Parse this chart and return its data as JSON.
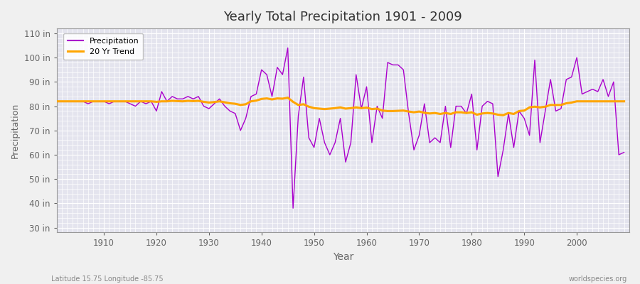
{
  "title": "Yearly Total Precipitation 1901 - 2009",
  "xlabel": "Year",
  "ylabel": "Precipitation",
  "subtitle_left": "Latitude 15.75 Longitude -85.75",
  "subtitle_right": "worldspecies.org",
  "ylim": [
    28,
    112
  ],
  "yticks": [
    30,
    40,
    50,
    60,
    70,
    80,
    90,
    100,
    110
  ],
  "xlim": [
    1901,
    2010
  ],
  "xticks": [
    1910,
    1920,
    1930,
    1940,
    1950,
    1960,
    1970,
    1980,
    1990,
    2000
  ],
  "precip_color": "#AA00CC",
  "trend_color": "#FFA500",
  "background_color": "#F0F0F0",
  "plot_bg_color": "#E4E4EE",
  "grid_color": "#FFFFFF",
  "years": [
    1901,
    1902,
    1903,
    1904,
    1905,
    1906,
    1907,
    1908,
    1909,
    1910,
    1911,
    1912,
    1913,
    1914,
    1915,
    1916,
    1917,
    1918,
    1919,
    1920,
    1921,
    1922,
    1923,
    1924,
    1925,
    1926,
    1927,
    1928,
    1929,
    1930,
    1931,
    1932,
    1933,
    1934,
    1935,
    1936,
    1937,
    1938,
    1939,
    1940,
    1941,
    1942,
    1943,
    1944,
    1945,
    1946,
    1947,
    1948,
    1949,
    1950,
    1951,
    1952,
    1953,
    1954,
    1955,
    1956,
    1957,
    1958,
    1959,
    1960,
    1961,
    1962,
    1963,
    1964,
    1965,
    1966,
    1967,
    1968,
    1969,
    1970,
    1971,
    1972,
    1973,
    1974,
    1975,
    1976,
    1977,
    1978,
    1979,
    1980,
    1981,
    1982,
    1983,
    1984,
    1985,
    1986,
    1987,
    1988,
    1989,
    1990,
    1991,
    1992,
    1993,
    1994,
    1995,
    1996,
    1997,
    1998,
    1999,
    2000,
    2001,
    2002,
    2003,
    2004,
    2005,
    2006,
    2007,
    2008,
    2009
  ],
  "precip": [
    82,
    82,
    82,
    82,
    82,
    82,
    81,
    82,
    82,
    82,
    81,
    82,
    82,
    82,
    81,
    80,
    82,
    81,
    82,
    78,
    86,
    82,
    84,
    83,
    83,
    84,
    83,
    84,
    80,
    79,
    81,
    83,
    80,
    78,
    77,
    70,
    75,
    84,
    85,
    95,
    93,
    84,
    96,
    93,
    104,
    38,
    76,
    92,
    67,
    63,
    75,
    65,
    60,
    65,
    75,
    57,
    65,
    93,
    79,
    88,
    65,
    80,
    75,
    98,
    97,
    97,
    95,
    77,
    62,
    68,
    81,
    65,
    67,
    65,
    80,
    63,
    80,
    80,
    77,
    85,
    62,
    80,
    82,
    81,
    51,
    62,
    77,
    63,
    78,
    75,
    68,
    99,
    65,
    78,
    91,
    78,
    79,
    91,
    92,
    100,
    85,
    86,
    87,
    86,
    91,
    84,
    90,
    60,
    61
  ],
  "trend": [
    82.0,
    82.0,
    82.0,
    82.0,
    82.0,
    82.0,
    82.0,
    82.0,
    82.0,
    82.0,
    82.0,
    82.0,
    82.0,
    82.0,
    82.0,
    82.0,
    82.0,
    82.0,
    82.0,
    81.8,
    82.0,
    82.0,
    82.2,
    82.1,
    82.0,
    82.2,
    82.1,
    82.2,
    81.8,
    81.5,
    81.7,
    82.0,
    81.6,
    81.2,
    81.0,
    80.5,
    80.8,
    82.0,
    82.3,
    83.0,
    83.2,
    82.8,
    83.2,
    83.1,
    83.5,
    81.8,
    80.5,
    80.8,
    79.8,
    79.2,
    79.0,
    78.8,
    79.0,
    79.2,
    79.5,
    79.0,
    79.2,
    79.5,
    79.2,
    79.4,
    78.8,
    79.0,
    78.2,
    78.0,
    78.0,
    78.1,
    78.2,
    77.8,
    77.5,
    77.8,
    77.3,
    77.0,
    77.2,
    76.8,
    77.2,
    76.8,
    77.5,
    77.5,
    77.2,
    77.5,
    76.5,
    77.0,
    77.2,
    77.0,
    76.5,
    76.3,
    77.2,
    76.8,
    78.0,
    78.2,
    79.5,
    79.8,
    79.5,
    79.8,
    80.5,
    80.5,
    80.5,
    81.2,
    81.5,
    82.0,
    82.0,
    82.0,
    82.0,
    82.0,
    82.0,
    82.0,
    82.0,
    82.0,
    82.0
  ]
}
